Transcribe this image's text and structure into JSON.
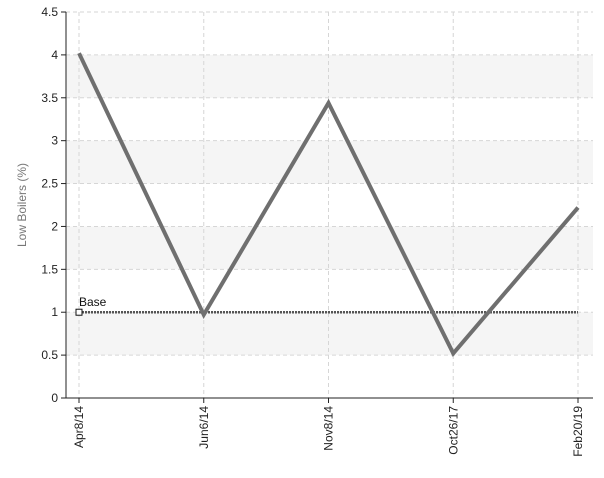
{
  "chart_data": {
    "type": "line",
    "categories": [
      "Apr8/14",
      "Jun6/14",
      "Nov8/14",
      "Oct26/17",
      "Feb20/19"
    ],
    "series": [
      {
        "values": [
          4.02,
          0.97,
          3.44,
          0.52,
          2.22
        ]
      }
    ],
    "xlabel": "",
    "ylabel": "Low Boilers (%)",
    "ylim": [
      0,
      4.5
    ],
    "yticks": [
      "0",
      "0.5",
      "1",
      "1.5",
      "2",
      "2.5",
      "3",
      "3.5",
      "4",
      "4.5"
    ],
    "grid": true,
    "reference_line": {
      "label": "Base",
      "value": 1
    },
    "colors": {
      "series": "#6f6f6f",
      "reference": "#555555",
      "grid": "#d6d6d6",
      "band": "#f5f5f5",
      "axis": "#222222"
    }
  }
}
